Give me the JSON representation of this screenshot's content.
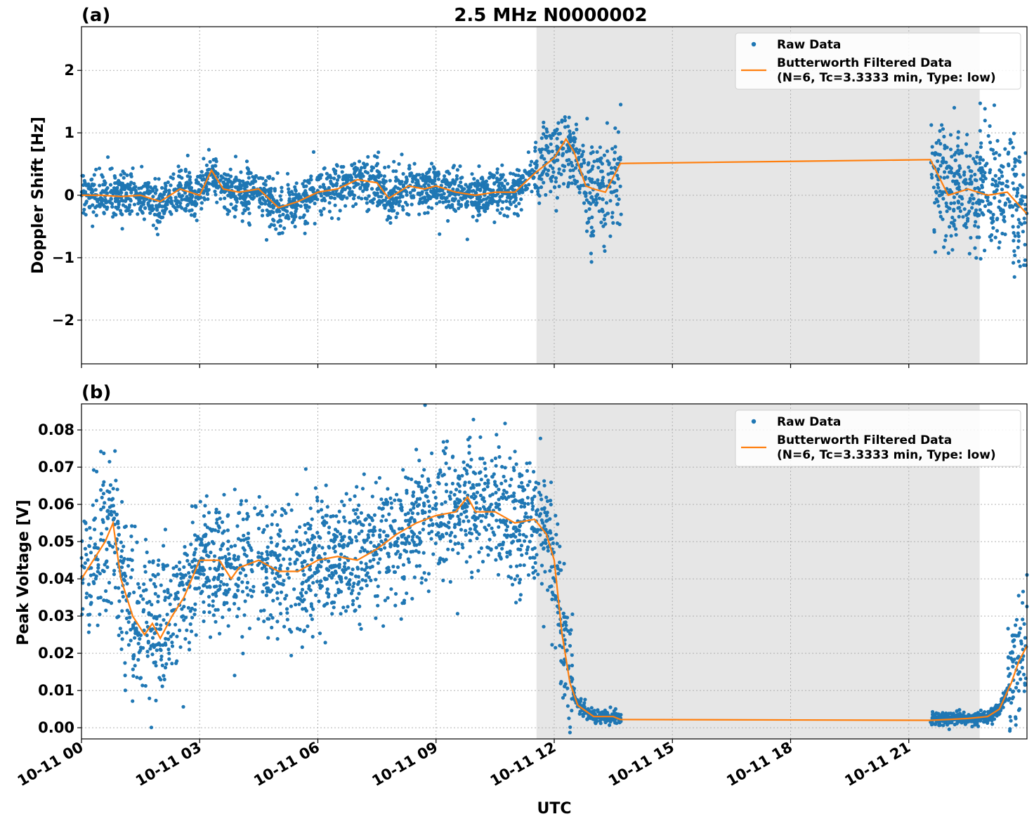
{
  "figure_title": "2.5 MHz N0000002",
  "x_axis": {
    "label": "UTC",
    "ticks": [
      "10-11 00",
      "10-11 03",
      "10-11 06",
      "10-11 09",
      "10-11 12",
      "10-11 15",
      "10-11 18",
      "10-11 21"
    ]
  },
  "colors": {
    "raw": "#1f77b4",
    "filtered": "#ff7f0e",
    "shade": "#e6e6e6",
    "grid": "#b0b0b0"
  },
  "legend": {
    "raw_label": "Raw Data",
    "filtered_line1": "Butterworth Filtered Data",
    "filtered_line2": "(N=6, Tc=3.3333 min, Type: low)"
  },
  "chart_data": [
    {
      "type": "scatter",
      "panel_label": "(a)",
      "ylabel": "Doppler Shift [Hz]",
      "xlim_hours": [
        0,
        24
      ],
      "ylim": [
        -2.7,
        2.7
      ],
      "yticks": [
        2,
        1,
        0,
        -1,
        -2
      ],
      "ytick_labels": [
        "2",
        "1",
        "0",
        "−1",
        "−2"
      ],
      "shaded_span_hours": [
        11.55,
        22.8
      ],
      "data_gap_hours": [
        13.7,
        21.55
      ],
      "legend_position": "upper right",
      "grid": true,
      "series": [
        {
          "name": "Raw Data",
          "style": "points"
        },
        {
          "name": "Butterworth Filtered Data (N=6, Tc=3.3333 min, Type: low)",
          "style": "line",
          "x": [
            0,
            0.5,
            1.0,
            1.5,
            2.0,
            2.5,
            3.0,
            3.3,
            3.6,
            4.0,
            4.5,
            5.0,
            5.5,
            6.0,
            6.5,
            7.0,
            7.5,
            7.8,
            8.3,
            8.7,
            9.0,
            9.5,
            10.0,
            10.5,
            11.0,
            11.5,
            12.0,
            12.3,
            12.5,
            12.8,
            13.0,
            13.3,
            13.68,
            21.55,
            22.0,
            22.5,
            23.0,
            23.5,
            24.0
          ],
          "y": [
            0,
            0,
            -0.02,
            0.0,
            -0.1,
            0.1,
            0.0,
            0.4,
            0.1,
            0.05,
            0.1,
            -0.2,
            -0.1,
            0.05,
            0.1,
            0.25,
            0.2,
            -0.05,
            0.15,
            0.1,
            0.15,
            0.05,
            0.0,
            0.05,
            0.05,
            0.35,
            0.6,
            0.9,
            0.7,
            0.15,
            0.1,
            0.05,
            0.51,
            0.57,
            0.0,
            0.1,
            0.0,
            0.05,
            -0.3
          ]
        }
      ]
    },
    {
      "type": "scatter",
      "panel_label": "(b)",
      "ylabel": "Peak Voltage [V]",
      "xlim_hours": [
        0,
        24
      ],
      "ylim": [
        -0.003,
        0.087
      ],
      "yticks": [
        0.08,
        0.07,
        0.06,
        0.05,
        0.04,
        0.03,
        0.02,
        0.01,
        0.0
      ],
      "ytick_labels": [
        "0.08",
        "0.07",
        "0.06",
        "0.05",
        "0.04",
        "0.03",
        "0.02",
        "0.01",
        "0.00"
      ],
      "shaded_span_hours": [
        11.55,
        22.8
      ],
      "data_gap_hours": [
        13.7,
        21.55
      ],
      "legend_position": "upper right",
      "grid": true,
      "series": [
        {
          "name": "Raw Data",
          "style": "points"
        },
        {
          "name": "Butterworth Filtered Data (N=6, Tc=3.3333 min, Type: low)",
          "style": "line",
          "x": [
            0,
            0.3,
            0.6,
            0.8,
            1.0,
            1.3,
            1.6,
            1.8,
            2.0,
            2.3,
            2.6,
            3.0,
            3.3,
            3.5,
            3.8,
            4.0,
            4.5,
            5.0,
            5.5,
            6.0,
            6.5,
            7.0,
            7.5,
            8.0,
            8.5,
            9.0,
            9.5,
            9.8,
            10.0,
            10.5,
            11.0,
            11.5,
            11.8,
            12.0,
            12.2,
            12.4,
            12.6,
            13.0,
            13.5,
            13.68,
            21.55,
            22.0,
            22.5,
            23.0,
            23.3,
            23.6,
            23.8,
            24.0
          ],
          "y": [
            0.04,
            0.045,
            0.05,
            0.055,
            0.04,
            0.03,
            0.025,
            0.028,
            0.024,
            0.03,
            0.035,
            0.045,
            0.045,
            0.045,
            0.04,
            0.043,
            0.045,
            0.042,
            0.042,
            0.045,
            0.046,
            0.045,
            0.048,
            0.052,
            0.055,
            0.057,
            0.058,
            0.062,
            0.058,
            0.058,
            0.055,
            0.056,
            0.052,
            0.045,
            0.025,
            0.012,
            0.006,
            0.003,
            0.003,
            0.0022,
            0.002,
            0.0022,
            0.0025,
            0.003,
            0.005,
            0.012,
            0.018,
            0.022
          ]
        }
      ]
    }
  ]
}
